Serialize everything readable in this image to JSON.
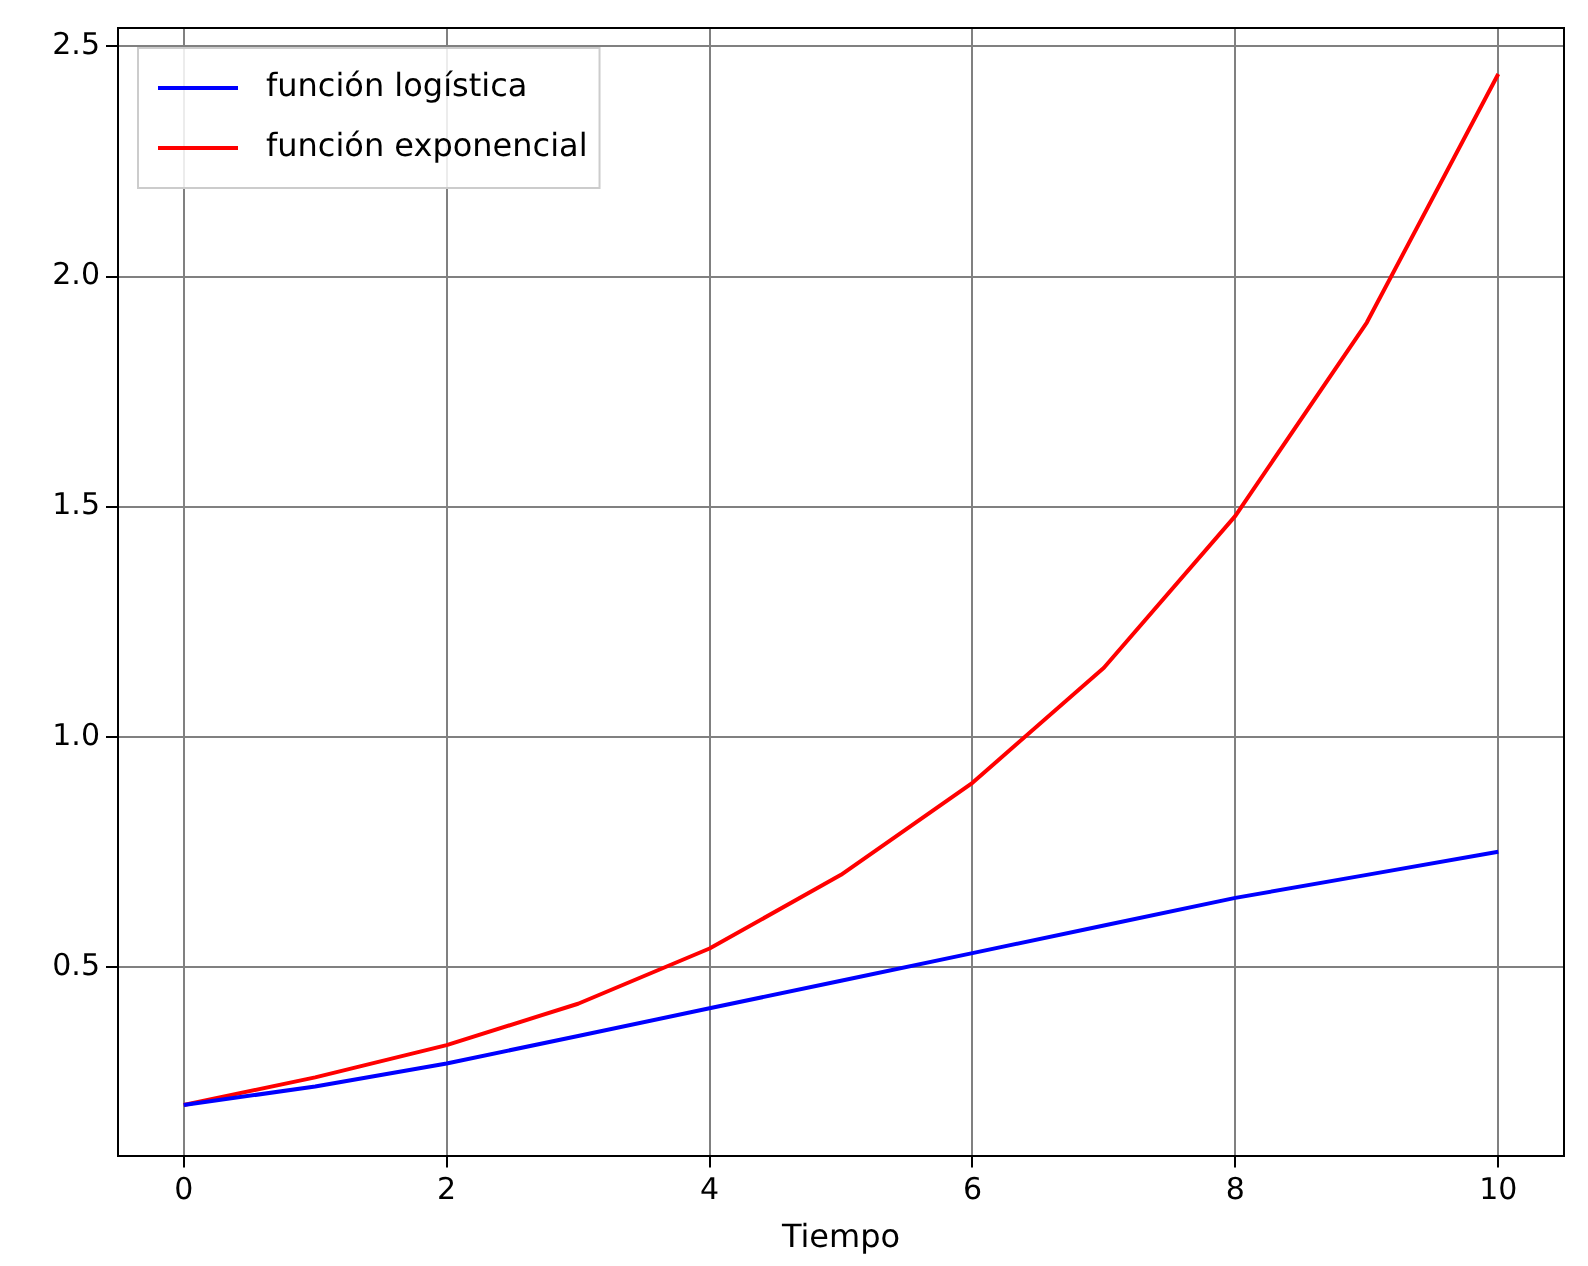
{
  "chart_data": {
    "type": "line",
    "xlabel": "Tiempo",
    "x": [
      0,
      1,
      2,
      3,
      4,
      5,
      6,
      7,
      8,
      9,
      10
    ],
    "series": [
      {
        "name": "función logística",
        "color": "#0000ff",
        "values": [
          0.2,
          0.24,
          0.29,
          0.35,
          0.41,
          0.47,
          0.53,
          0.59,
          0.65,
          0.7,
          0.75
        ]
      },
      {
        "name": "función exponencial",
        "color": "#ff0000",
        "values": [
          0.2,
          0.26,
          0.33,
          0.42,
          0.54,
          0.7,
          0.9,
          1.15,
          1.48,
          1.9,
          2.44
        ]
      }
    ],
    "xlim": [
      -0.5,
      10.5
    ],
    "xticks": [
      0,
      2,
      4,
      6,
      8,
      10
    ],
    "ylim": [
      0.09,
      2.54
    ],
    "yticks": [
      {
        "value": 0.5,
        "label": "0.5"
      },
      {
        "value": 1.0,
        "label": "1.0"
      },
      {
        "value": 1.5,
        "label": "1.5"
      },
      {
        "value": 2.0,
        "label": "2.0"
      },
      {
        "value": 2.5,
        "label": "2.5"
      }
    ],
    "grid": true,
    "legend": "top left",
    "marker": "none",
    "line_style": "solid"
  }
}
